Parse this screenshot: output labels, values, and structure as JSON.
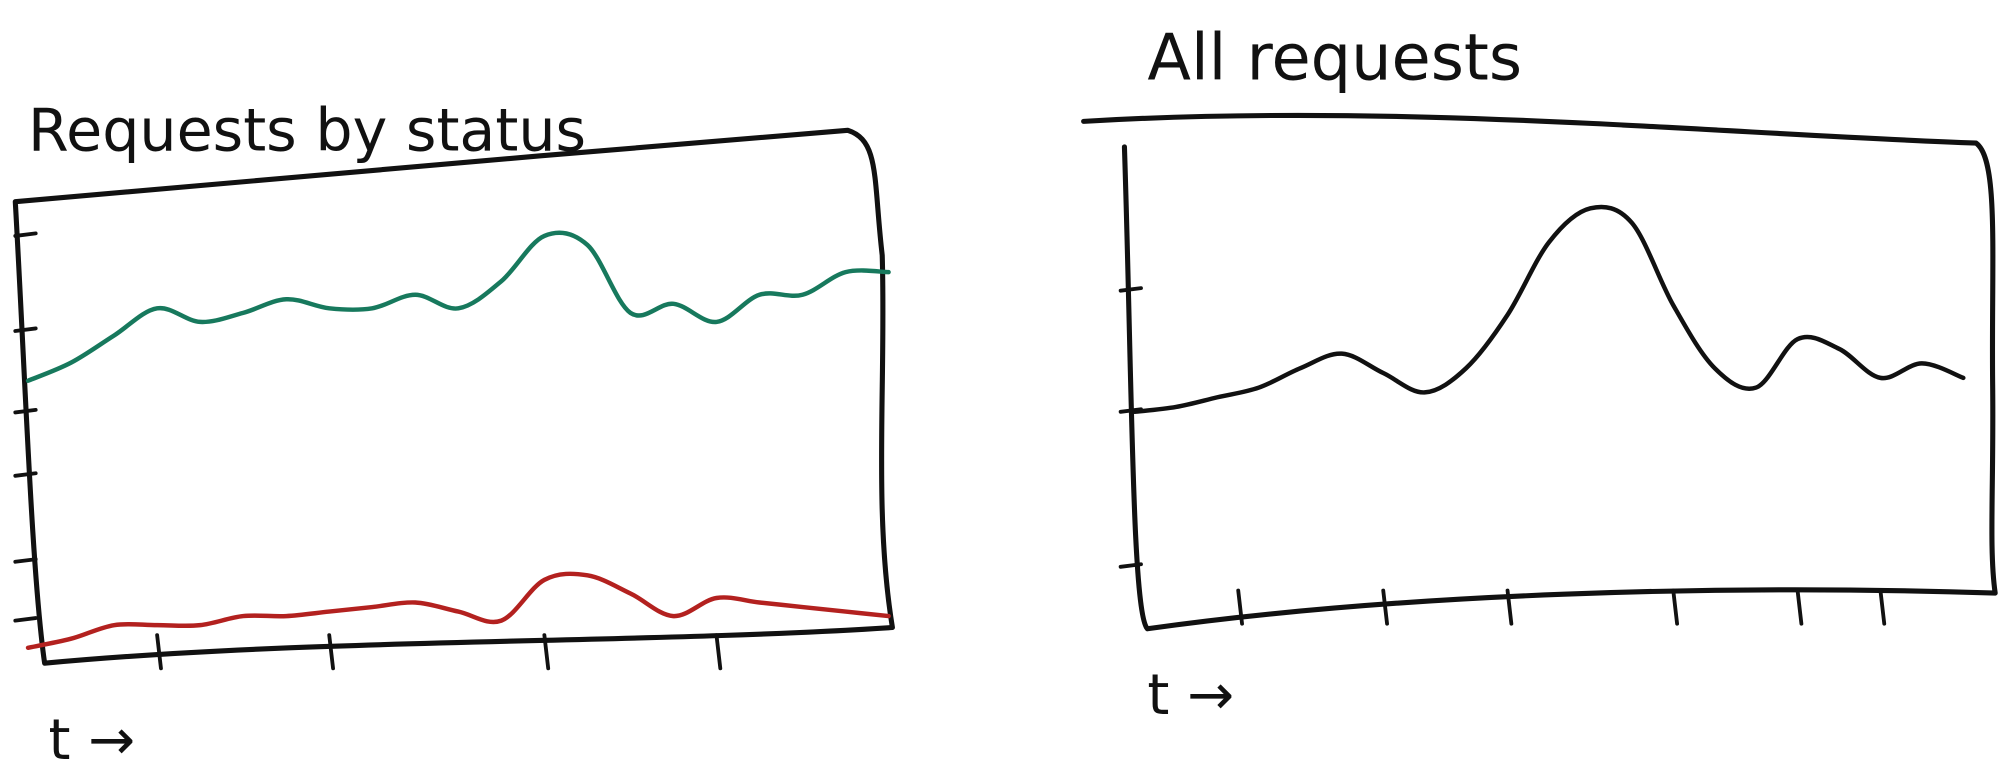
{
  "chart_data": [
    {
      "type": "line",
      "title": "Requests by status",
      "xlabel": "t →",
      "x": [
        0,
        1,
        2,
        3,
        4,
        5,
        6,
        7,
        8,
        9,
        10,
        11,
        12,
        13,
        14,
        15,
        16,
        17,
        18,
        19,
        20
      ],
      "xlim": [
        0,
        20
      ],
      "xticks": [
        3,
        7,
        12,
        16
      ],
      "ylim": [
        0,
        100
      ],
      "yticks": [
        8,
        21,
        40,
        54,
        72,
        93
      ],
      "series": [
        {
          "color": "#17795d",
          "values": [
            61,
            65,
            71,
            77,
            74,
            76,
            79,
            77,
            77,
            80,
            77,
            83,
            93,
            91,
            76,
            78,
            74,
            80,
            80,
            85,
            85
          ]
        },
        {
          "color": "#b3211f",
          "values": [
            2,
            4,
            7,
            7,
            7,
            9,
            9,
            10,
            11,
            12,
            10,
            8,
            17,
            18,
            14,
            9,
            13,
            12,
            11,
            10,
            9
          ]
        }
      ]
    },
    {
      "type": "line",
      "title": "All requests",
      "xlabel": "t →",
      "x": [
        0,
        1,
        2,
        3,
        4,
        5,
        6,
        7,
        8,
        9,
        10,
        11,
        12,
        13,
        14,
        15,
        16,
        17,
        18,
        19,
        20
      ],
      "xlim": [
        0,
        20
      ],
      "xticks": [
        2.5,
        6,
        9,
        13,
        16,
        18
      ],
      "ylim": [
        0,
        100
      ],
      "yticks": [
        12,
        44,
        69
      ],
      "series": [
        {
          "color": "#111111",
          "values": [
            44,
            45,
            47,
            49,
            53,
            56,
            52,
            48,
            53,
            64,
            79,
            86,
            83,
            66,
            53,
            49,
            59,
            57,
            51,
            54,
            51
          ]
        }
      ]
    }
  ]
}
